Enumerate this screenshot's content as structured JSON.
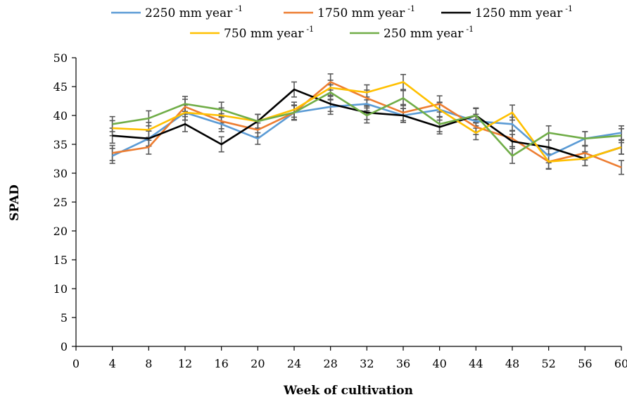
{
  "chart_data": {
    "type": "line",
    "xlabel": "Week of cultivation",
    "ylabel": "SPAD",
    "xlim": [
      0,
      60
    ],
    "ylim": [
      0,
      50
    ],
    "x_ticks": [
      0,
      4,
      8,
      12,
      16,
      20,
      24,
      28,
      32,
      36,
      40,
      44,
      48,
      52,
      56,
      60
    ],
    "y_ticks": [
      0,
      5,
      10,
      15,
      20,
      25,
      30,
      35,
      40,
      45,
      50
    ],
    "x": [
      4,
      8,
      12,
      16,
      20,
      24,
      28,
      32,
      36,
      40,
      44,
      48,
      52,
      56,
      60
    ],
    "legend_position": "top",
    "series": [
      {
        "name": "2250 mm year",
        "sup": "-1",
        "color": "#5b9bd5",
        "values": [
          33.0,
          36.0,
          40.5,
          38.5,
          36.0,
          40.5,
          41.5,
          42.0,
          40.0,
          41.0,
          39.0,
          38.5,
          33.0,
          36.0,
          37.0
        ],
        "errors": [
          1.3,
          1.3,
          1.3,
          1.3,
          1.0,
          1.3,
          1.3,
          1.2,
          1.2,
          1.3,
          1.2,
          1.2,
          1.2,
          1.2,
          1.2
        ]
      },
      {
        "name": "1750 mm year",
        "sup": "-1",
        "color": "#ed7d31",
        "values": [
          33.5,
          34.5,
          41.5,
          39.0,
          37.5,
          40.5,
          45.8,
          43.0,
          40.5,
          42.0,
          38.0,
          36.0,
          32.0,
          33.5,
          31.0
        ],
        "errors": [
          1.3,
          1.2,
          1.3,
          1.3,
          1.2,
          1.2,
          1.4,
          1.4,
          1.4,
          1.4,
          1.3,
          1.4,
          1.2,
          1.2,
          1.2
        ]
      },
      {
        "name": "1250 mm year",
        "sup": "-1",
        "color": "#000000",
        "values": [
          36.5,
          36.0,
          38.5,
          35.0,
          39.0,
          44.5,
          42.0,
          40.5,
          40.0,
          38.0,
          40.0,
          35.5,
          34.5,
          32.5,
          34.5
        ],
        "errors": [
          1.3,
          1.3,
          1.3,
          1.3,
          1.2,
          1.3,
          1.3,
          1.2,
          1.2,
          1.2,
          1.2,
          1.2,
          1.2,
          1.2,
          1.2
        ]
      },
      {
        "name": "750 mm year",
        "sup": "-1",
        "color": "#ffc000",
        "values": [
          37.8,
          37.5,
          40.5,
          40.0,
          39.0,
          41.0,
          44.8,
          44.0,
          45.8,
          41.0,
          37.0,
          40.5,
          32.0,
          32.5,
          34.5
        ],
        "errors": [
          1.3,
          1.3,
          1.3,
          1.3,
          1.2,
          1.3,
          1.3,
          1.3,
          1.3,
          1.2,
          1.2,
          1.3,
          1.3,
          1.2,
          1.2
        ]
      },
      {
        "name": "250 mm year",
        "sup": "-1",
        "color": "#70ad47",
        "values": [
          38.5,
          39.5,
          42.0,
          41.0,
          39.0,
          40.5,
          44.0,
          40.0,
          43.0,
          38.5,
          40.0,
          33.0,
          37.0,
          36.0,
          36.5
        ],
        "errors": [
          1.3,
          1.3,
          1.3,
          1.3,
          1.2,
          1.3,
          1.3,
          1.3,
          1.3,
          1.3,
          1.3,
          1.3,
          1.2,
          1.2,
          1.2
        ]
      }
    ]
  }
}
